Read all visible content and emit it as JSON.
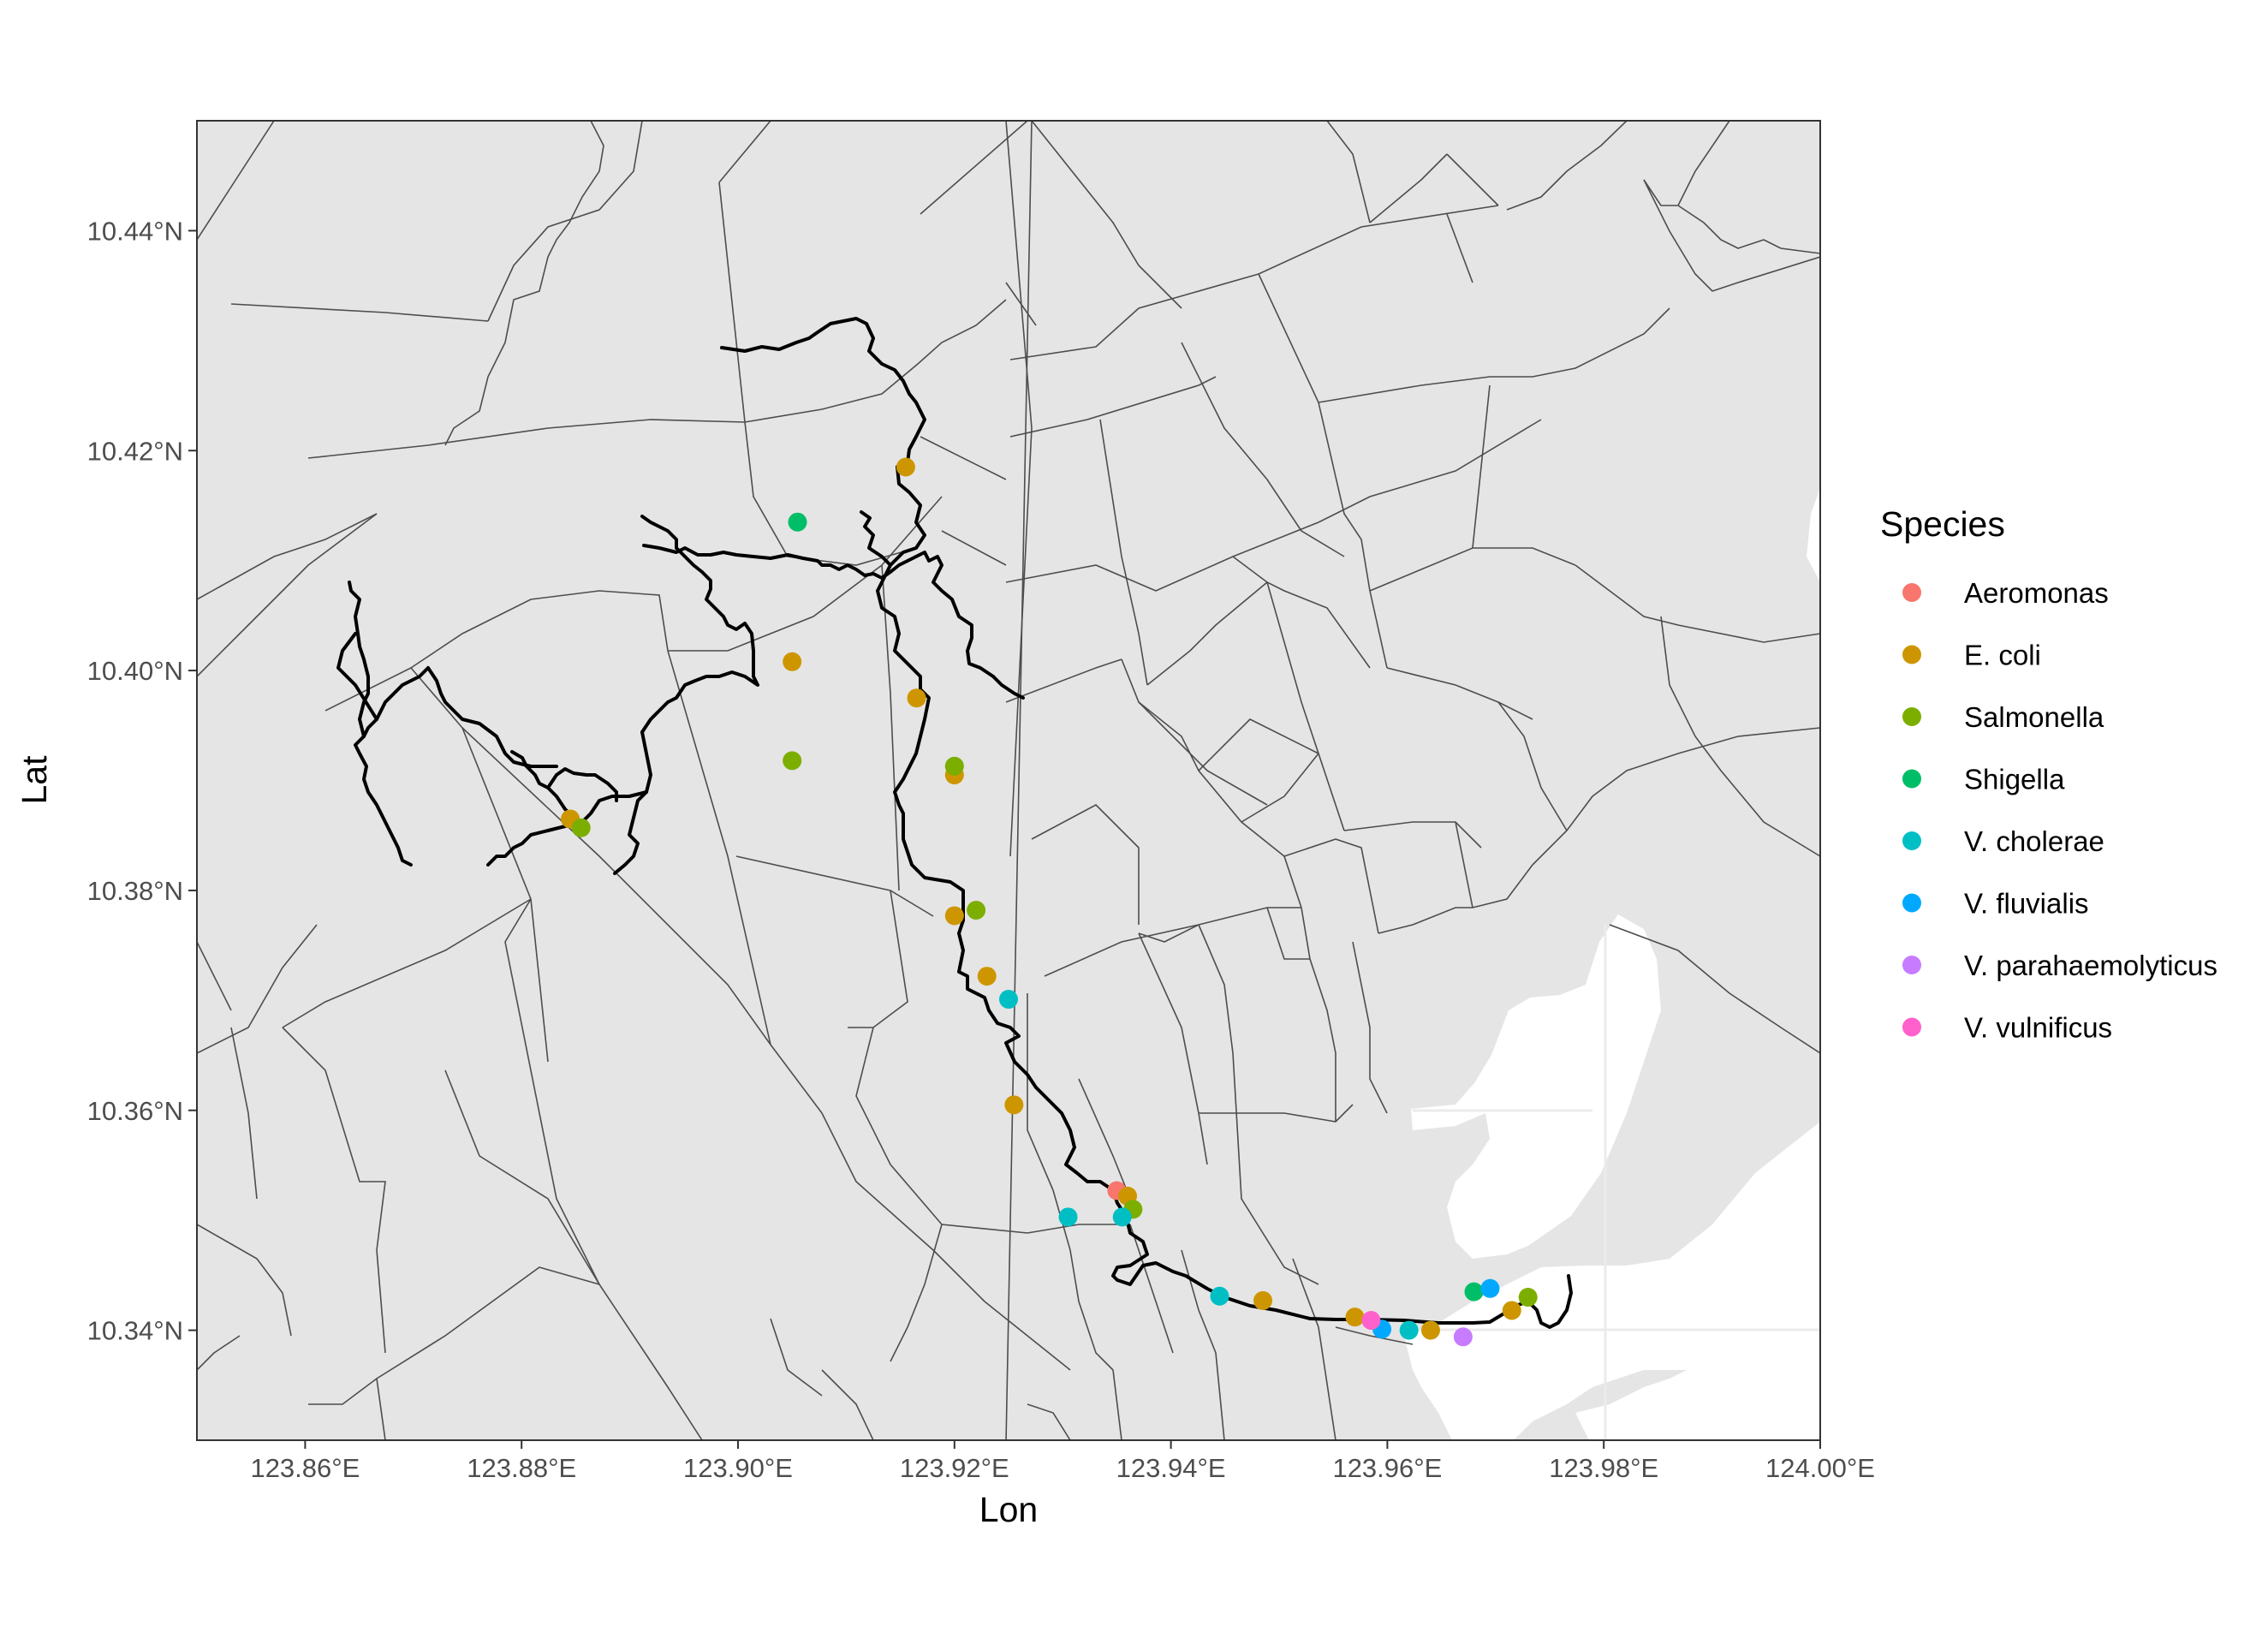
{
  "chart_data": {
    "type": "scatter",
    "xlabel": "Lon",
    "ylabel": "Lat",
    "xlim": [
      123.85,
      124.0
    ],
    "ylim": [
      10.33,
      10.45
    ],
    "x_ticks": [
      123.86,
      123.88,
      123.9,
      123.92,
      123.94,
      123.96,
      123.98,
      124.0
    ],
    "x_tick_labels": [
      "123.86°E",
      "123.88°E",
      "123.90°E",
      "123.92°E",
      "123.94°E",
      "123.96°E",
      "123.98°E",
      "124.00°E"
    ],
    "y_ticks": [
      10.34,
      10.36,
      10.38,
      10.4,
      10.42,
      10.44
    ],
    "y_tick_labels": [
      "10.34°N",
      "10.36°N",
      "10.38°N",
      "10.40°N",
      "10.42°N",
      "10.44°N"
    ],
    "legend": {
      "title": "Species",
      "position": "right"
    },
    "grid": true,
    "colors": {
      "land": "#e5e5e5",
      "water": "#ffffff",
      "boundary": "#4d4d4d",
      "river": "#000000",
      "panel_border": "#333333"
    },
    "series": [
      {
        "name": "Aeromonas",
        "color": "#F8766D",
        "points": [
          [
            123.935,
            10.3527
          ]
        ]
      },
      {
        "name": "E. coli",
        "color": "#CD9600",
        "points": [
          [
            123.9155,
            10.4185
          ],
          [
            123.905,
            10.4008
          ],
          [
            123.9165,
            10.3975
          ],
          [
            123.92,
            10.3905
          ],
          [
            123.8845,
            10.3865
          ],
          [
            123.92,
            10.3777
          ],
          [
            123.923,
            10.3722
          ],
          [
            123.9255,
            10.3605
          ],
          [
            123.936,
            10.3522
          ],
          [
            123.9485,
            10.3427
          ],
          [
            123.957,
            10.3412
          ],
          [
            123.964,
            10.34
          ],
          [
            123.9715,
            10.3418
          ]
        ]
      },
      {
        "name": "Salmonella",
        "color": "#7CAE00",
        "points": [
          [
            123.905,
            10.3918
          ],
          [
            123.92,
            10.3913
          ],
          [
            123.8855,
            10.3857
          ],
          [
            123.922,
            10.3782
          ],
          [
            123.9365,
            10.351
          ],
          [
            123.973,
            10.343
          ]
        ]
      },
      {
        "name": "Shigella",
        "color": "#00BE67",
        "points": [
          [
            123.9055,
            10.4135
          ],
          [
            123.968,
            10.3435
          ]
        ]
      },
      {
        "name": "V. cholerae",
        "color": "#00BFC4",
        "points": [
          [
            123.925,
            10.3701
          ],
          [
            123.9305,
            10.3503
          ],
          [
            123.9355,
            10.3503
          ],
          [
            123.9445,
            10.3431
          ],
          [
            123.962,
            10.34
          ]
        ]
      },
      {
        "name": "V. fluvialis",
        "color": "#00A9FF",
        "points": [
          [
            123.9595,
            10.3401
          ],
          [
            123.9695,
            10.3438
          ]
        ]
      },
      {
        "name": "V. parahaemolyticus",
        "color": "#C77CFF",
        "points": [
          [
            123.967,
            10.3394
          ]
        ]
      },
      {
        "name": "V. vulnificus",
        "color": "#FF61CC",
        "points": [
          [
            123.9585,
            10.3409
          ]
        ]
      }
    ]
  }
}
